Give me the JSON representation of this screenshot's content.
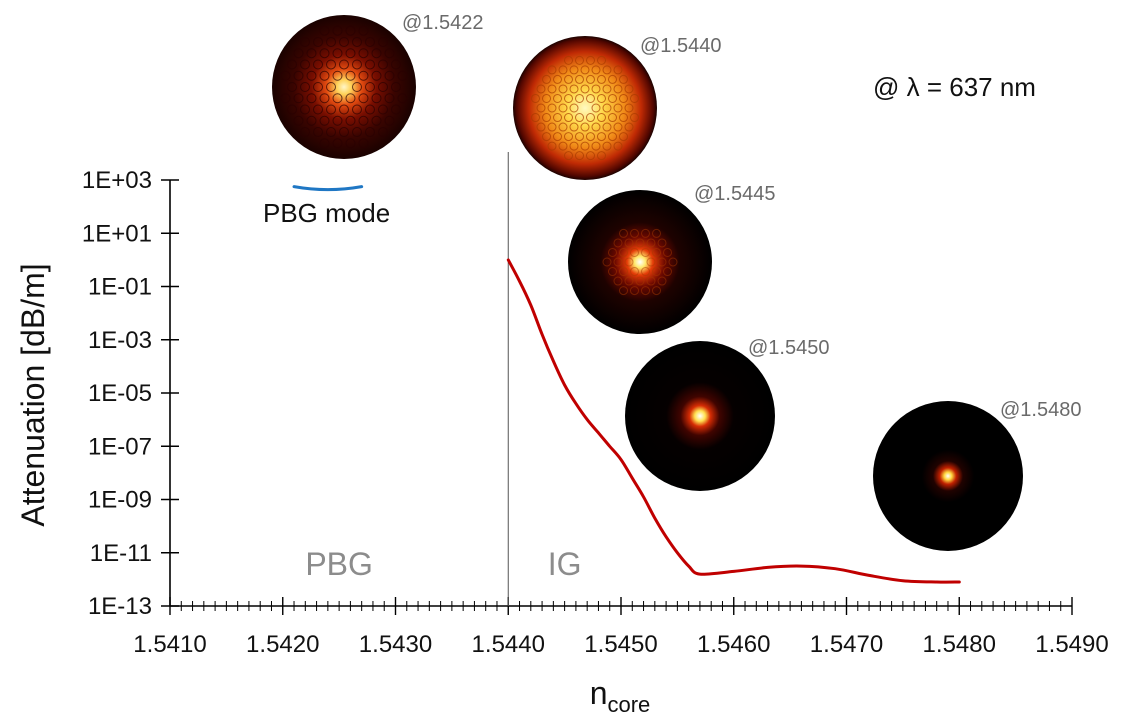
{
  "chart_data": {
    "type": "line",
    "xlabel_main": "n",
    "xlabel_sub": "core",
    "ylabel": "Attenuation [dB/m]",
    "y_scale": "log",
    "xlim": [
      1.541,
      1.549
    ],
    "ylim_exp": [
      -13,
      3
    ],
    "x_ticks": [
      "1.5410",
      "1.5420",
      "1.5430",
      "1.5440",
      "1.5450",
      "1.5460",
      "1.5470",
      "1.5480",
      "1.5490"
    ],
    "x_tick_values": [
      1.541,
      1.542,
      1.543,
      1.544,
      1.545,
      1.546,
      1.547,
      1.548,
      1.549
    ],
    "y_ticks": [
      "1E+03",
      "1E+01",
      "1E-01",
      "1E-03",
      "1E-05",
      "1E-07",
      "1E-09",
      "1E-11",
      "1E-13"
    ],
    "y_tick_exponents": [
      3,
      1,
      -1,
      -3,
      -5,
      -7,
      -9,
      -11,
      -13
    ],
    "divider_x": 1.544,
    "regions": [
      {
        "label": "PBG",
        "x": 1.5425
      },
      {
        "label": "IG",
        "x": 1.5445
      }
    ],
    "series": [
      {
        "color": "#c00000",
        "x": [
          1.544,
          1.5441,
          1.5442,
          1.5443,
          1.5444,
          1.5445,
          1.5446,
          1.5447,
          1.5448,
          1.5449,
          1.545,
          1.5451,
          1.5452,
          1.5453,
          1.5454,
          1.5455,
          1.5456,
          1.5457,
          1.546,
          1.5463,
          1.5466,
          1.5469,
          1.5472,
          1.5475,
          1.5478,
          1.548
        ],
        "y_exp": [
          0.0,
          -0.8,
          -1.7,
          -2.8,
          -3.8,
          -4.7,
          -5.4,
          -6.0,
          -6.5,
          -7.0,
          -7.5,
          -8.2,
          -8.9,
          -9.7,
          -10.4,
          -11.0,
          -11.5,
          -11.8,
          -11.7,
          -11.55,
          -11.5,
          -11.6,
          -11.85,
          -12.05,
          -12.1,
          -12.1
        ]
      },
      {
        "color": "#1f77c4",
        "name": "PBG mode",
        "x": [
          1.5421,
          1.5427
        ],
        "y_exp": [
          2.75,
          2.75
        ]
      }
    ],
    "mode_images": [
      {
        "label": "@1.5422",
        "style": "pbg",
        "size": "large"
      },
      {
        "label": "@1.5440",
        "style": "broad",
        "size": "large"
      },
      {
        "label": "@1.5445",
        "style": "mid",
        "size": "large"
      },
      {
        "label": "@1.5450",
        "style": "tight",
        "size": "large"
      },
      {
        "label": "@1.5480",
        "style": "tightest",
        "size": "large"
      }
    ],
    "annotation": "@ λ = 637 nm",
    "legend_label": "PBG mode"
  }
}
